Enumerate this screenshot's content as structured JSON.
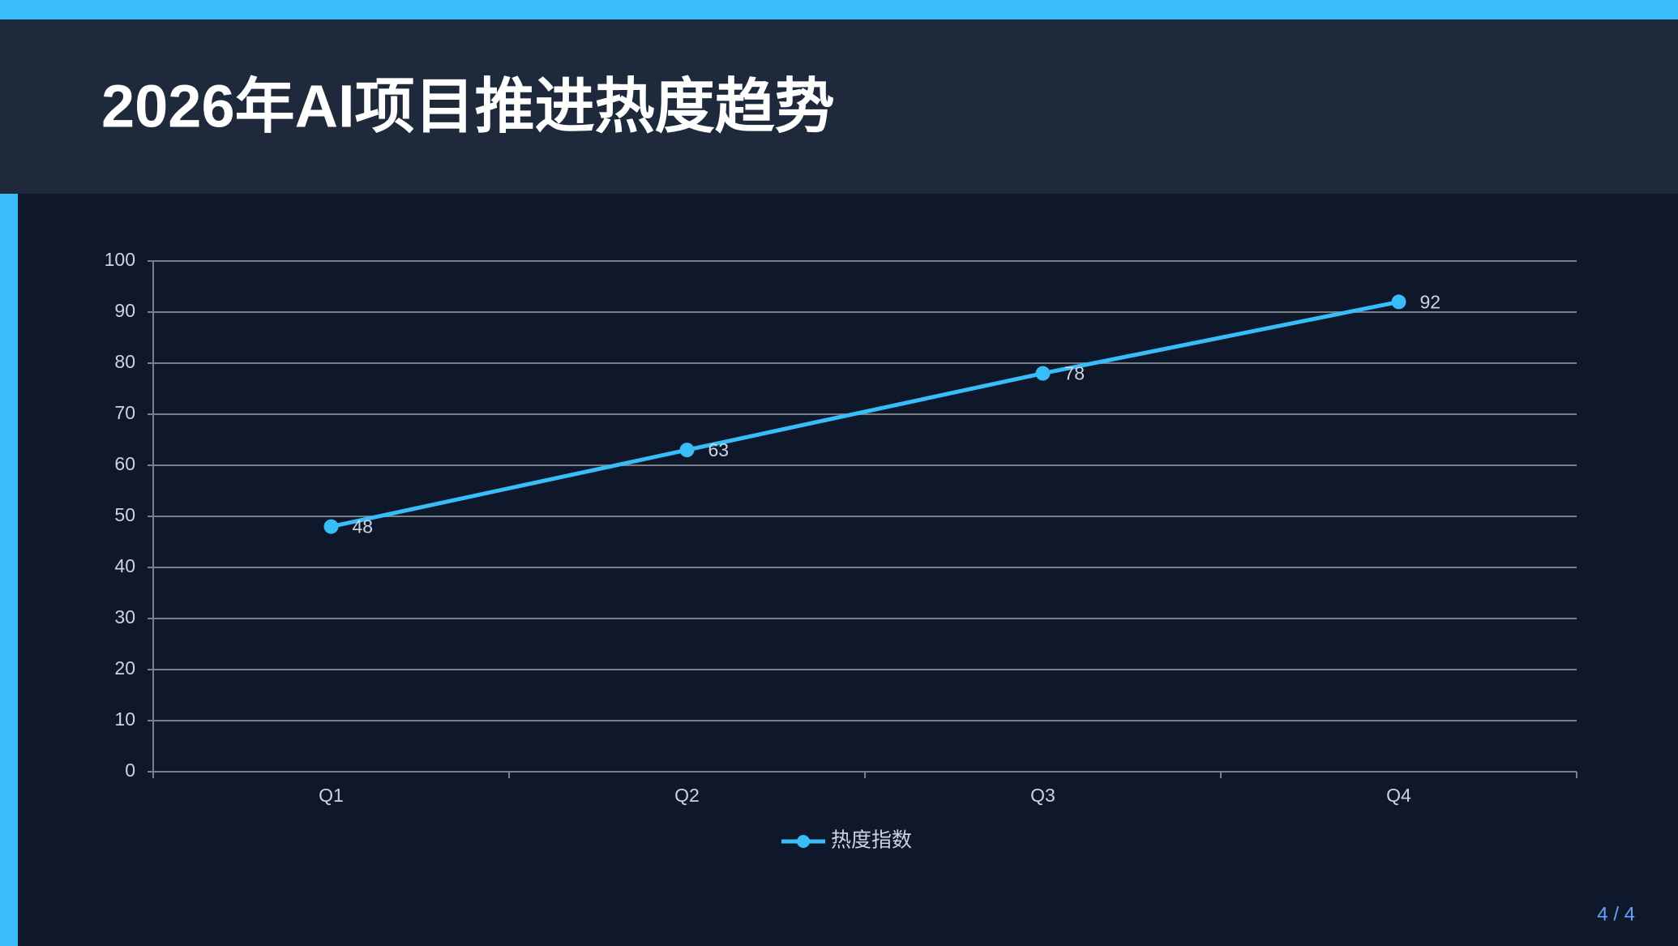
{
  "chart_data": {
    "type": "line",
    "title": "2026年AI项目推进热度趋势",
    "categories": [
      "Q1",
      "Q2",
      "Q3",
      "Q4"
    ],
    "series": [
      {
        "name": "热度指数",
        "color": "#38bdf8",
        "values": [
          48,
          63,
          78,
          92
        ]
      }
    ],
    "ylim": [
      0,
      100
    ],
    "yticks": [
      0,
      10,
      20,
      30,
      40,
      50,
      60,
      70,
      80,
      90,
      100
    ],
    "grid": true,
    "data_labels": true,
    "legend": "bottom"
  },
  "page": {
    "number": "4 / 4"
  }
}
